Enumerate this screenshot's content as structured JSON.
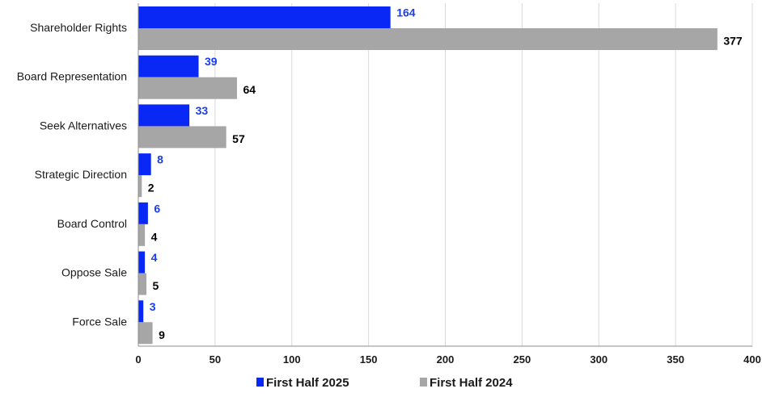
{
  "chart_data": {
    "type": "bar",
    "orientation": "horizontal",
    "categories": [
      "Shareholder Rights",
      "Board Representation",
      "Seek Alternatives",
      "Strategic Direction",
      "Board Control",
      "Oppose Sale",
      "Force Sale"
    ],
    "series": [
      {
        "name": "First Half 2025",
        "values": [
          164,
          39,
          33,
          8,
          6,
          4,
          3
        ],
        "color": "#0a28f5",
        "label_color": "#1a3cf0"
      },
      {
        "name": "First Half 2024",
        "values": [
          377,
          64,
          57,
          2,
          4,
          5,
          9
        ],
        "color": "#a6a6a6",
        "label_color": "#000000"
      }
    ],
    "xlim": [
      0,
      400
    ],
    "xticks": [
      0,
      50,
      100,
      150,
      200,
      250,
      300,
      350,
      400
    ],
    "grid": true,
    "legend_position": "bottom",
    "data_labels": true
  }
}
